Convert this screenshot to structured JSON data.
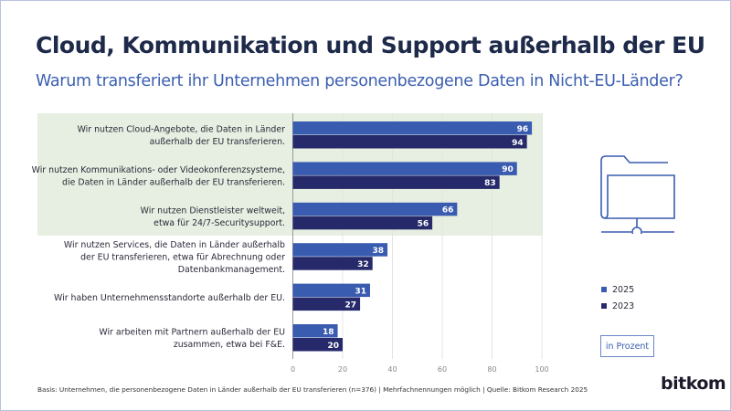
{
  "header": {
    "title": "Cloud, Kommunikation und Support außerhalb der EU",
    "subtitle": "Warum transferiert ihr Unternehmen personenbezogene Daten in Nicht-EU-Länder?"
  },
  "chart_data": {
    "type": "bar",
    "orientation": "horizontal",
    "categories": [
      [
        "Wir nutzen Cloud-Angebote, die Daten in Länder",
        "außerhalb der EU transferieren."
      ],
      [
        "Wir nutzen Kommunikations- oder Videokonferenzsysteme,",
        "die Daten in Länder außerhalb der EU transferieren."
      ],
      [
        "Wir nutzen Dienstleister weltweit,",
        "etwa für 24/7-Securitysupport."
      ],
      [
        "Wir nutzen Services, die Daten in Länder außerhalb",
        "der EU transferieren, etwa für Abrechnung oder",
        "Datenbankmanagement."
      ],
      [
        "Wir haben Unternehmensstandorte außerhalb der EU."
      ],
      [
        "Wir arbeiten mit Partnern außerhalb der EU",
        "zusammen, etwa bei F&E."
      ]
    ],
    "series": [
      {
        "name": "2025",
        "values": [
          96,
          90,
          66,
          38,
          31,
          18
        ],
        "color": "#3a5cb0"
      },
      {
        "name": "2023",
        "values": [
          94,
          83,
          56,
          32,
          27,
          20
        ],
        "color": "#262a6b"
      }
    ],
    "highlighted_categories": [
      0,
      1,
      2
    ],
    "highlight_color": "#e6efe1",
    "xlim": [
      0,
      100
    ],
    "xticks": [
      "0",
      "20",
      "40",
      "60",
      "80",
      "100"
    ],
    "grid": true,
    "unit_label": "in Prozent",
    "legend_position": "right"
  },
  "footnote": "Basis: Unternehmen, die personenbezogene Daten in Länder außerhalb der EU transferieren (n=376) | Mehrfachnennungen möglich | Quelle: Bitkom Research 2025",
  "logo": "bitkom",
  "icon": "folder-network-icon"
}
